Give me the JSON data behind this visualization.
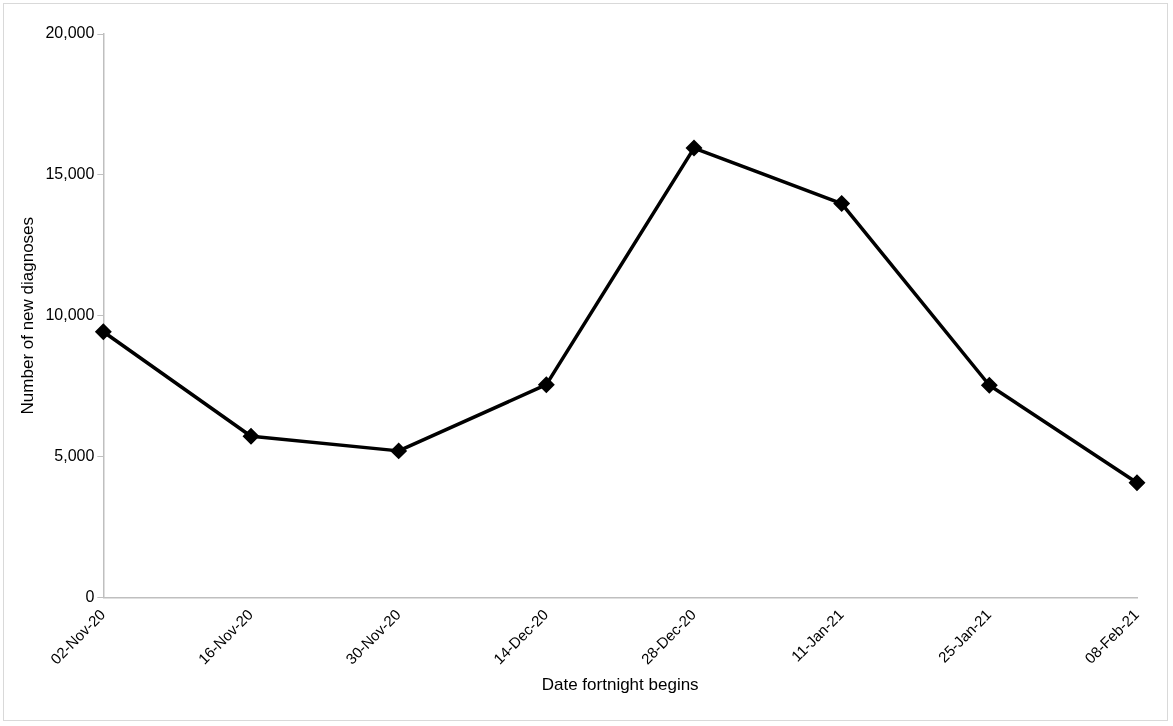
{
  "chart_data": {
    "type": "line",
    "xlabel": "Date fortnight begins",
    "ylabel": "Number of new diagnoses",
    "categories": [
      "02-Nov-20",
      "16-Nov-20",
      "30-Nov-20",
      "14-Dec-20",
      "28-Dec-20",
      "11-Jan-21",
      "25-Jan-21",
      "08-Feb-21"
    ],
    "series": [
      {
        "color": "#000000",
        "values": [
          9430,
          5720,
          5200,
          7550,
          15950,
          13980,
          7530,
          4070
        ]
      }
    ],
    "ylim": [
      0,
      20000
    ],
    "yticks": [
      {
        "value": 0,
        "label": "0"
      },
      {
        "value": 5000,
        "label": "5,000"
      },
      {
        "value": 10000,
        "label": "10,000"
      },
      {
        "value": 15000,
        "label": "15,000"
      },
      {
        "value": 20000,
        "label": "20,000"
      }
    ],
    "grid": false,
    "legend": false,
    "marker": "diamond",
    "line_style": "solid"
  }
}
